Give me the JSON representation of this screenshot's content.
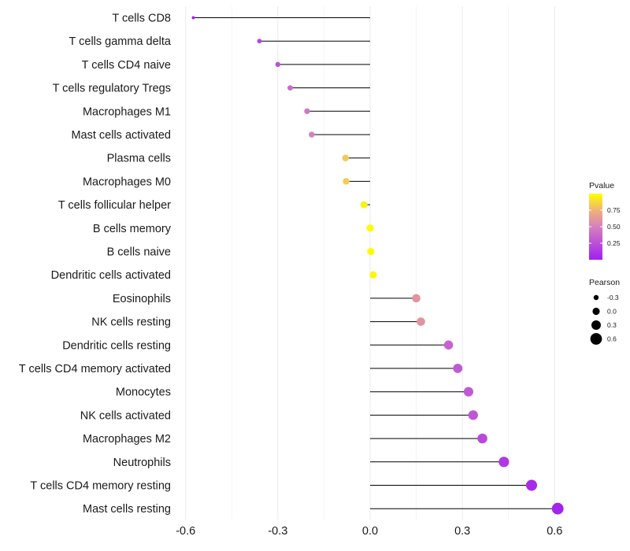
{
  "chart_data": {
    "type": "lollipop",
    "categories": [
      "T cells CD8",
      "T cells gamma delta",
      "T cells CD4 naive",
      "T cells regulatory  Tregs",
      "Macrophages M1",
      "Mast cells activated",
      "Plasma cells",
      "Macrophages M0",
      "T cells follicular helper",
      "B cells memory",
      "B cells naive",
      "Dendritic cells activated",
      "Eosinophils",
      "NK cells resting",
      "Dendritic cells resting",
      "T cells CD4 memory activated",
      "Monocytes",
      "NK cells activated",
      "Macrophages M2",
      "Neutrophils",
      "T cells CD4 memory resting",
      "Mast cells resting"
    ],
    "pearson": [
      -0.575,
      -0.36,
      -0.3,
      -0.26,
      -0.205,
      -0.19,
      -0.08,
      -0.078,
      -0.02,
      0.0,
      0.002,
      0.01,
      0.15,
      0.165,
      0.255,
      0.285,
      0.32,
      0.335,
      0.365,
      0.435,
      0.525,
      0.61
    ],
    "pvalue": [
      0.02,
      0.2,
      0.25,
      0.4,
      0.45,
      0.5,
      0.82,
      0.83,
      0.95,
      0.99,
      0.99,
      0.97,
      0.6,
      0.6,
      0.35,
      0.3,
      0.3,
      0.28,
      0.22,
      0.13,
      0.06,
      0.02
    ],
    "xaxis": {
      "ticks": [
        -0.6,
        -0.3,
        0.0,
        0.3,
        0.6
      ],
      "tick_labels": [
        "-0.6",
        "-0.3",
        "0.0",
        "0.3",
        "0.6"
      ],
      "range": [
        -0.62,
        0.62
      ]
    },
    "legend_color": {
      "title": "Pvalue",
      "ticks": [
        0.25,
        0.5,
        0.75
      ],
      "tick_labels": [
        "0.25",
        "0.50",
        "0.75"
      ],
      "range": [
        0.0,
        1.0
      ],
      "color_low": "#a020f0",
      "color_high": "#ffff00"
    },
    "legend_size": {
      "title": "Pearson",
      "values": [
        -0.3,
        0.0,
        0.3,
        0.6
      ],
      "labels": [
        "-0.3",
        "0.0",
        "0.3",
        "0.6"
      ]
    },
    "colors": {
      "grid": "#ebebeb",
      "segment": "#000000"
    }
  }
}
